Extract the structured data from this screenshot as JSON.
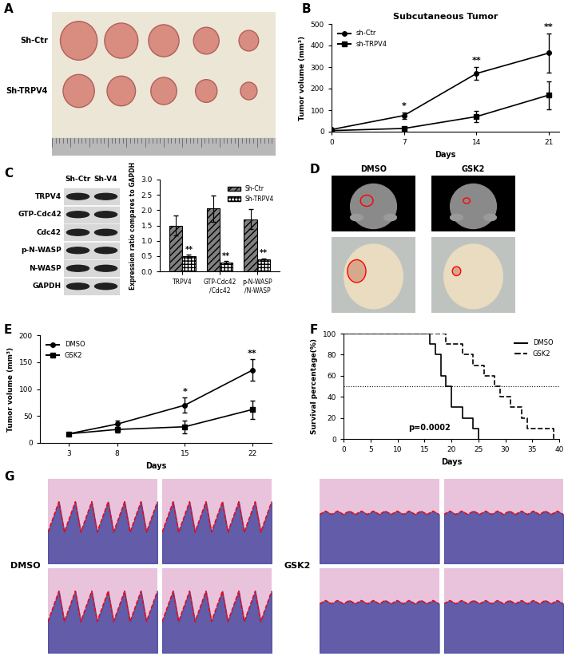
{
  "figure": {
    "images": [
      {
        "panel": "A",
        "type": "photo",
        "rows": [
          "Sh-Ctr",
          "Sh-TRPV4"
        ]
      },
      {
        "panel": "C",
        "type": "blot",
        "columns": [
          "Sh-Ctr",
          "Sh-V4"
        ],
        "rows": [
          "TRPV4",
          "GTP-Cdc42",
          "Cdc42",
          "p-N-WASP",
          "N-WASP",
          "GAPDH"
        ]
      },
      {
        "panel": "D",
        "type": "photo",
        "columns": [
          "DMSO",
          "GSK2"
        ]
      },
      {
        "panel": "G",
        "type": "histology",
        "groups": [
          "DMSO",
          "GSK2"
        ]
      }
    ]
  },
  "chart_data": [
    {
      "panel": "B",
      "type": "line",
      "title": "Subcutaneous Tumor",
      "x_label": "Days",
      "y_label": "Tumor volume (mm³)",
      "x": [
        0,
        7,
        14,
        21
      ],
      "xlim": [
        0,
        22
      ],
      "xticks": [
        0,
        7,
        14,
        21
      ],
      "ylim": [
        0,
        500
      ],
      "yticks": [
        0,
        100,
        200,
        300,
        400,
        500
      ],
      "legend": "upper left",
      "series": [
        {
          "name": "sh-Ctr",
          "color": "#000000",
          "marker": "circle",
          "line_style": "solid",
          "values": [
            10,
            75,
            270,
            365
          ],
          "errors": [
            0,
            15,
            30,
            90
          ]
        },
        {
          "name": "sh-TRPV4",
          "color": "#000000",
          "marker": "square",
          "line_style": "solid",
          "values": [
            5,
            15,
            70,
            170
          ],
          "errors": [
            0,
            5,
            25,
            65
          ]
        }
      ],
      "significance": [
        null,
        "*",
        "**",
        "**"
      ]
    },
    {
      "type": "bar",
      "y_label": "Expression ratio compares to GAPDH",
      "categories": [
        "TRPV4",
        "GTP-Cdc42\n/Cdc42",
        "p-N-WASP\n/N-WASP"
      ],
      "ylim": [
        0,
        3
      ],
      "yticks": [
        {
          "value": 0,
          "label": "0.0"
        },
        {
          "value": 0.5,
          "label": "0.5"
        },
        {
          "value": 1,
          "label": "1.0"
        },
        {
          "value": 1.5,
          "label": "1.5"
        },
        {
          "value": 2,
          "label": "2.0"
        },
        {
          "value": 2.5,
          "label": "2.5"
        },
        {
          "value": 3,
          "label": "3.0"
        }
      ],
      "legend": "upper right",
      "series": [
        {
          "name": "Sh-Ctr",
          "color": "#808080",
          "values": [
            1.5,
            2.05,
            1.7
          ],
          "errors": [
            0.32,
            0.42,
            0.33
          ]
        },
        {
          "name": "Sh-TRPV4",
          "color": "#ffffff",
          "values": [
            0.5,
            0.3,
            0.38
          ],
          "errors": [
            0.05,
            0.04,
            0.05
          ],
          "significance": [
            "**",
            "**",
            "**"
          ]
        }
      ]
    },
    {
      "panel": "E",
      "type": "line",
      "x_label": "Days",
      "y_label": "Tumor volume (mm³)",
      "x": [
        3,
        8,
        15,
        22
      ],
      "xlim": [
        0,
        24
      ],
      "xticks": [
        3,
        8,
        15,
        22
      ],
      "ylim": [
        0,
        200
      ],
      "yticks": [
        0,
        50,
        100,
        150,
        200
      ],
      "legend": "upper left",
      "series": [
        {
          "name": "DMSO",
          "color": "#000000",
          "marker": "circle",
          "line_style": "solid",
          "values": [
            17,
            35,
            70,
            135
          ],
          "errors": [
            0,
            7,
            14,
            20
          ]
        },
        {
          "name": "GSK2",
          "color": "#000000",
          "marker": "square",
          "line_style": "solid",
          "values": [
            17,
            25,
            30,
            62
          ],
          "errors": [
            0,
            5,
            12,
            17
          ]
        }
      ],
      "significance": [
        null,
        null,
        "*",
        "**"
      ]
    },
    {
      "panel": "F",
      "type": "step",
      "x_label": "Days",
      "y_label": "Survival percentage(%)",
      "xlim": [
        0,
        40
      ],
      "xticks": [
        0,
        5,
        10,
        15,
        20,
        25,
        30,
        35,
        40
      ],
      "ylim": [
        0,
        100
      ],
      "yticks": [
        0,
        20,
        40,
        60,
        80,
        100
      ],
      "legend": "upper right",
      "median_line": 50,
      "annotations": [
        {
          "text": "p=0.0002"
        }
      ],
      "series": [
        {
          "name": "DMSO",
          "color": "#000000",
          "line_style": "solid",
          "x": [
            0,
            16,
            17,
            18,
            19,
            20,
            22,
            24,
            25
          ],
          "values": [
            100,
            90,
            80,
            60,
            50,
            30,
            20,
            10,
            0
          ]
        },
        {
          "name": "GSK2",
          "color": "#000000",
          "line_style": "dashed",
          "x": [
            0,
            19,
            22,
            24,
            26,
            28,
            29,
            31,
            33,
            34,
            39
          ],
          "values": [
            100,
            90,
            80,
            70,
            60,
            50,
            40,
            30,
            20,
            10,
            0
          ]
        }
      ]
    }
  ]
}
